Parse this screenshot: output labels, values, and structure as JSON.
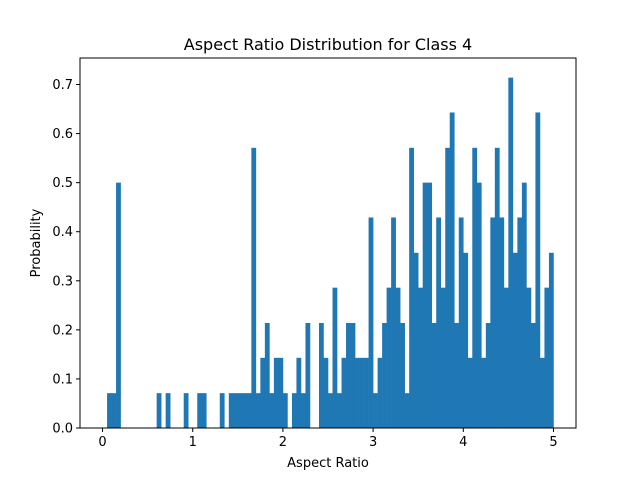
{
  "chart_data": {
    "type": "bar",
    "title": "Aspect Ratio Distribution for Class 4",
    "xlabel": "Aspect Ratio",
    "ylabel": "Probability",
    "xlim": [
      -0.25,
      5.25
    ],
    "ylim": [
      0,
      0.754
    ],
    "xticks": [
      "0",
      "1",
      "2",
      "3",
      "4",
      "5"
    ],
    "yticks": [
      "0.0",
      "0.1",
      "0.2",
      "0.3",
      "0.4",
      "0.5",
      "0.6",
      "0.7"
    ],
    "bar_color": "#1f77b4",
    "bin_width": 0.05,
    "bins": [
      [
        0.05,
        0.071
      ],
      [
        0.1,
        0.071
      ],
      [
        0.15,
        0.5
      ],
      [
        0.6,
        0.071
      ],
      [
        0.7,
        0.071
      ],
      [
        0.9,
        0.071
      ],
      [
        1.05,
        0.071
      ],
      [
        1.1,
        0.071
      ],
      [
        1.3,
        0.071
      ],
      [
        1.4,
        0.071
      ],
      [
        1.45,
        0.071
      ],
      [
        1.5,
        0.071
      ],
      [
        1.55,
        0.071
      ],
      [
        1.6,
        0.071
      ],
      [
        1.65,
        0.571
      ],
      [
        1.7,
        0.071
      ],
      [
        1.75,
        0.143
      ],
      [
        1.8,
        0.214
      ],
      [
        1.85,
        0.071
      ],
      [
        1.9,
        0.143
      ],
      [
        1.95,
        0.143
      ],
      [
        2.0,
        0.071
      ],
      [
        2.1,
        0.071
      ],
      [
        2.15,
        0.143
      ],
      [
        2.2,
        0.071
      ],
      [
        2.25,
        0.214
      ],
      [
        2.4,
        0.214
      ],
      [
        2.45,
        0.143
      ],
      [
        2.5,
        0.071
      ],
      [
        2.55,
        0.286
      ],
      [
        2.6,
        0.071
      ],
      [
        2.65,
        0.143
      ],
      [
        2.7,
        0.214
      ],
      [
        2.75,
        0.214
      ],
      [
        2.8,
        0.143
      ],
      [
        2.85,
        0.143
      ],
      [
        2.9,
        0.143
      ],
      [
        2.95,
        0.429
      ],
      [
        3.0,
        0.071
      ],
      [
        3.05,
        0.143
      ],
      [
        3.1,
        0.214
      ],
      [
        3.15,
        0.286
      ],
      [
        3.2,
        0.429
      ],
      [
        3.25,
        0.286
      ],
      [
        3.3,
        0.214
      ],
      [
        3.35,
        0.071
      ],
      [
        3.4,
        0.571
      ],
      [
        3.45,
        0.357
      ],
      [
        3.5,
        0.286
      ],
      [
        3.55,
        0.5
      ],
      [
        3.6,
        0.5
      ],
      [
        3.65,
        0.214
      ],
      [
        3.7,
        0.429
      ],
      [
        3.75,
        0.286
      ],
      [
        3.8,
        0.571
      ],
      [
        3.85,
        0.643
      ],
      [
        3.9,
        0.214
      ],
      [
        3.95,
        0.429
      ],
      [
        4.0,
        0.357
      ],
      [
        4.05,
        0.143
      ],
      [
        4.1,
        0.571
      ],
      [
        4.15,
        0.5
      ],
      [
        4.2,
        0.143
      ],
      [
        4.25,
        0.214
      ],
      [
        4.3,
        0.429
      ],
      [
        4.35,
        0.571
      ],
      [
        4.4,
        0.429
      ],
      [
        4.45,
        0.286
      ],
      [
        4.5,
        0.714
      ],
      [
        4.55,
        0.357
      ],
      [
        4.6,
        0.429
      ],
      [
        4.65,
        0.5
      ],
      [
        4.7,
        0.286
      ],
      [
        4.75,
        0.214
      ],
      [
        4.8,
        0.643
      ],
      [
        4.85,
        0.143
      ],
      [
        4.9,
        0.286
      ],
      [
        4.95,
        0.357
      ]
    ]
  }
}
